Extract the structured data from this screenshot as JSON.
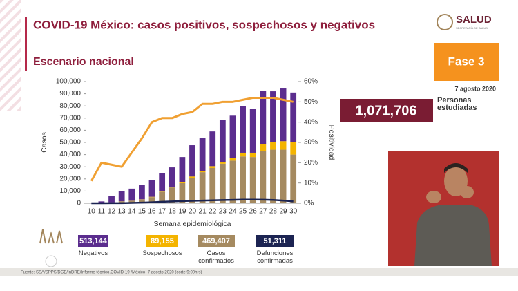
{
  "header": {
    "title": "COVID-19 México: casos positivos, sospechosos y negativos",
    "subtitle": "Escenario nacional",
    "logo": "SALUD",
    "logo_sub": "SECRETARÍA DE SALUD"
  },
  "phase": "Fase 3",
  "date": "7 agosto 2020",
  "studied": {
    "value": "1,071,706",
    "label": "Personas estudiadas"
  },
  "footer": "Fuente: SSA/SPPS/DGE/InDRE/Informe técnico.COVID-19 /México- 7 agosto 2020 (corte 9:00hrs)",
  "chart_data": {
    "type": "bar",
    "stacked": true,
    "xlabel": "Semana epidemiológica",
    "ylabel": "Casos",
    "y2label": "Positividad",
    "categories": [
      10,
      11,
      12,
      13,
      14,
      15,
      16,
      17,
      18,
      19,
      20,
      21,
      22,
      23,
      24,
      25,
      26,
      27,
      28,
      29,
      30
    ],
    "ylim": [
      0,
      100000
    ],
    "yticks": [
      0,
      {
        "value": 10000,
        "label": "10,000"
      },
      {
        "value": 20000,
        "label": "20,000"
      },
      {
        "value": 30000,
        "label": "30,000"
      },
      {
        "value": 40000,
        "label": "40,000"
      },
      {
        "value": 50000,
        "label": "50,000"
      },
      {
        "value": 60000,
        "label": "60,000"
      },
      {
        "value": 70000,
        "label": "70,000"
      },
      {
        "value": 80000,
        "label": "80,000"
      },
      {
        "value": 90000,
        "label": "90,000"
      },
      {
        "value": 100000,
        "label": "100,000"
      }
    ],
    "y2lim": [
      0,
      60
    ],
    "y2ticks": [
      {
        "value": 0,
        "label": "0%"
      },
      {
        "value": 10,
        "label": "10%"
      },
      {
        "value": 20,
        "label": "20%"
      },
      {
        "value": 30,
        "label": "30%"
      },
      {
        "value": 40,
        "label": "40%"
      },
      {
        "value": 50,
        "label": "50%"
      },
      {
        "value": 60,
        "label": "60%"
      }
    ],
    "series": [
      {
        "name": "Negativos",
        "total": "513,144",
        "type": "bar",
        "color": "#5b2d8e",
        "values": [
          200,
          1200,
          5000,
          8100,
          9900,
          11600,
          13500,
          15000,
          16000,
          20700,
          25700,
          26900,
          28500,
          34700,
          35000,
          38500,
          35800,
          44100,
          42000,
          43300,
          41000
        ]
      },
      {
        "name": "Sospechosos",
        "total": "89,155",
        "type": "bar",
        "color": "#f4b400",
        "values": [
          0,
          0,
          0,
          100,
          100,
          200,
          300,
          500,
          500,
          800,
          1000,
          1000,
          1500,
          1500,
          2000,
          3000,
          3500,
          5500,
          6000,
          7000,
          10000
        ]
      },
      {
        "name": "Casos confirmados",
        "total": "469,407",
        "type": "bar",
        "color": "#a58a60",
        "values": [
          100,
          300,
          700,
          1500,
          2000,
          3000,
          5000,
          9500,
          13000,
          16500,
          21000,
          25500,
          29000,
          32500,
          35000,
          38500,
          38000,
          43000,
          44000,
          44000,
          40000
        ]
      },
      {
        "name": "Defunciones confirmadas",
        "total": "51,311",
        "type": "line",
        "color": "#1c2452",
        "values": [
          0,
          0,
          50,
          100,
          300,
          500,
          800,
          1200,
          1500,
          1800,
          2000,
          2200,
          2400,
          2600,
          2800,
          3000,
          3000,
          2900,
          2700,
          2200,
          1500
        ]
      },
      {
        "type": "line",
        "axis": "y2",
        "color": "#f0a032",
        "values": [
          11,
          20,
          19,
          18,
          25,
          32,
          40,
          42,
          42,
          44,
          45,
          49,
          49,
          50,
          50,
          51,
          52,
          52,
          52,
          51,
          50
        ]
      }
    ]
  }
}
